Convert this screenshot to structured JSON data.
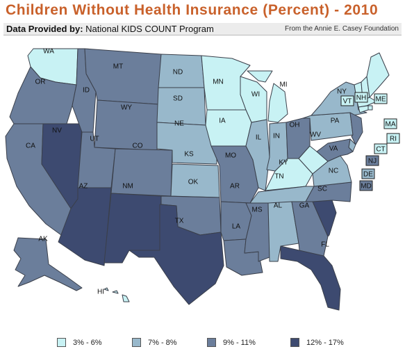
{
  "title": "Children Without Health Insurance (Percent) - 2010",
  "provider": {
    "prefix": "Data Provided by:",
    "name": " National KIDS COUNT Program"
  },
  "source": "From the Annie E. Casey Foundation",
  "colors": {
    "c1": "#c8f2f4",
    "c2": "#98b8cb",
    "c3": "#6b7e9b",
    "c4": "#3d4a70",
    "border": "#3a3f4a"
  },
  "legend": [
    {
      "label": "3% - 6%",
      "color": "#c8f2f4"
    },
    {
      "label": "7% - 8%",
      "color": "#98b8cb"
    },
    {
      "label": "9% - 11%",
      "color": "#6b7e9b"
    },
    {
      "label": "12% - 17%",
      "color": "#3d4a70"
    }
  ],
  "states": [
    {
      "abbr": "WA",
      "bin": "3% - 6%"
    },
    {
      "abbr": "OR",
      "bin": "9% - 11%"
    },
    {
      "abbr": "CA",
      "bin": "9% - 11%"
    },
    {
      "abbr": "NV",
      "bin": "12% - 17%"
    },
    {
      "abbr": "ID",
      "bin": "9% - 11%"
    },
    {
      "abbr": "MT",
      "bin": "9% - 11%"
    },
    {
      "abbr": "WY",
      "bin": "9% - 11%"
    },
    {
      "abbr": "UT",
      "bin": "9% - 11%"
    },
    {
      "abbr": "AZ",
      "bin": "12% - 17%"
    },
    {
      "abbr": "CO",
      "bin": "9% - 11%"
    },
    {
      "abbr": "NM",
      "bin": "12% - 17%"
    },
    {
      "abbr": "ND",
      "bin": "7% - 8%"
    },
    {
      "abbr": "SD",
      "bin": "7% - 8%"
    },
    {
      "abbr": "NE",
      "bin": "7% - 8%"
    },
    {
      "abbr": "KS",
      "bin": "7% - 8%"
    },
    {
      "abbr": "OK",
      "bin": "9% - 11%"
    },
    {
      "abbr": "TX",
      "bin": "12% - 17%"
    },
    {
      "abbr": "MN",
      "bin": "3% - 6%"
    },
    {
      "abbr": "IA",
      "bin": "3% - 6%"
    },
    {
      "abbr": "MO",
      "bin": "9% - 11%"
    },
    {
      "abbr": "AR",
      "bin": "9% - 11%"
    },
    {
      "abbr": "LA",
      "bin": "9% - 11%"
    },
    {
      "abbr": "WI",
      "bin": "3% - 6%"
    },
    {
      "abbr": "IL",
      "bin": "7% - 8%"
    },
    {
      "abbr": "MI",
      "bin": "3% - 6%"
    },
    {
      "abbr": "IN",
      "bin": "7% - 8%"
    },
    {
      "abbr": "OH",
      "bin": "9% - 11%"
    },
    {
      "abbr": "KY",
      "bin": "3% - 6%"
    },
    {
      "abbr": "TN",
      "bin": "7% - 8%"
    },
    {
      "abbr": "MS",
      "bin": "9% - 11%"
    },
    {
      "abbr": "AL",
      "bin": "7% - 8%"
    },
    {
      "abbr": "GA",
      "bin": "9% - 11%"
    },
    {
      "abbr": "FL",
      "bin": "12% - 17%"
    },
    {
      "abbr": "SC",
      "bin": "12% - 17%"
    },
    {
      "abbr": "NC",
      "bin": "9% - 11%"
    },
    {
      "abbr": "VA",
      "bin": "7% - 8%"
    },
    {
      "abbr": "WV",
      "bin": "3% - 6%"
    },
    {
      "abbr": "PA",
      "bin": "7% - 8%"
    },
    {
      "abbr": "NY",
      "bin": "7% - 8%"
    },
    {
      "abbr": "VT",
      "bin": "3% - 6%"
    },
    {
      "abbr": "NH",
      "bin": "3% - 6%"
    },
    {
      "abbr": "ME",
      "bin": "3% - 6%"
    },
    {
      "abbr": "MA",
      "bin": "3% - 6%"
    },
    {
      "abbr": "RI",
      "bin": "3% - 6%"
    },
    {
      "abbr": "CT",
      "bin": "3% - 6%"
    },
    {
      "abbr": "NJ",
      "bin": "9% - 11%"
    },
    {
      "abbr": "DE",
      "bin": "7% - 8%"
    },
    {
      "abbr": "MD",
      "bin": "9% - 11%"
    },
    {
      "abbr": "AK",
      "bin": "9% - 11%"
    },
    {
      "abbr": "HI",
      "bin": "3% - 6%"
    }
  ]
}
